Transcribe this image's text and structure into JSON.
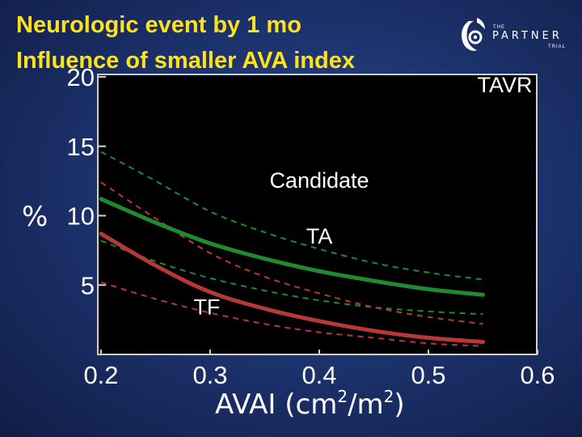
{
  "title_line1": "Neurologic event by 1 mo",
  "title_line2": "Influence of smaller AVA index",
  "logo": {
    "the": "THE",
    "name": "PARTNER",
    "trial": "TRIAL"
  },
  "colors": {
    "title": "#ffe21a",
    "candidate": "#1e8c2e",
    "tf": "#b83838",
    "plot_bg": "#000000",
    "axis": "#cfcfcf"
  },
  "chart_data": {
    "type": "line",
    "title": "",
    "xlabel_main": "AVAI (cm",
    "xlabel_sup1": "2",
    "xlabel_mid": "/m",
    "xlabel_sup2": "2",
    "xlabel_end": ")",
    "ylabel": "%",
    "xlim": [
      0.2,
      0.6
    ],
    "ylim": [
      0,
      20
    ],
    "xticks": [
      0.2,
      0.3,
      0.4,
      0.5,
      0.6
    ],
    "xtick_labels": [
      "0.2",
      "0.3",
      "0.4",
      "0.5",
      "0.6"
    ],
    "yticks": [
      5,
      10,
      15,
      20
    ],
    "ytick_labels": [
      "5",
      "10",
      "15",
      "20"
    ],
    "grid": false,
    "annotations": [
      {
        "text": "TAVR",
        "x": 0.57,
        "y": 18.9
      },
      {
        "text": "Candidate",
        "x": 0.4,
        "y": 12.0
      },
      {
        "text": "TA",
        "x": 0.4,
        "y": 8.0
      },
      {
        "text": "TF",
        "x": 0.297,
        "y": 2.9
      }
    ],
    "series": [
      {
        "id": "candidate",
        "style": "solid",
        "color": "#1e8c2e",
        "x": [
          0.2,
          0.25,
          0.3,
          0.35,
          0.4,
          0.45,
          0.5,
          0.55
        ],
        "y": [
          11.2,
          9.5,
          8.0,
          6.9,
          6.0,
          5.3,
          4.7,
          4.3
        ]
      },
      {
        "id": "candidate-upper",
        "style": "dashed",
        "color": "#1e8c2e",
        "x": [
          0.2,
          0.25,
          0.3,
          0.35,
          0.4,
          0.45,
          0.5,
          0.55
        ],
        "y": [
          14.6,
          12.5,
          10.3,
          8.8,
          7.6,
          6.6,
          5.9,
          5.4
        ]
      },
      {
        "id": "candidate-lower",
        "style": "dashed",
        "color": "#1e8c2e",
        "x": [
          0.2,
          0.25,
          0.3,
          0.35,
          0.4,
          0.45,
          0.5,
          0.55
        ],
        "y": [
          8.2,
          6.7,
          5.5,
          4.6,
          3.9,
          3.4,
          3.1,
          2.9
        ]
      },
      {
        "id": "tf",
        "style": "solid",
        "color": "#b83838",
        "x": [
          0.2,
          0.25,
          0.3,
          0.35,
          0.4,
          0.45,
          0.5,
          0.55
        ],
        "y": [
          8.7,
          6.4,
          4.5,
          3.3,
          2.4,
          1.7,
          1.2,
          0.9
        ]
      },
      {
        "id": "tf-upper",
        "style": "dashed",
        "color": "#b83838",
        "x": [
          0.2,
          0.25,
          0.3,
          0.35,
          0.4,
          0.45,
          0.5,
          0.55
        ],
        "y": [
          12.4,
          9.8,
          7.3,
          5.6,
          4.4,
          3.4,
          2.7,
          2.2
        ]
      },
      {
        "id": "tf-lower",
        "style": "dashed",
        "color": "#b83838",
        "x": [
          0.2,
          0.25,
          0.3,
          0.35,
          0.4,
          0.45,
          0.5,
          0.55
        ],
        "y": [
          5.2,
          4.0,
          3.0,
          2.2,
          1.6,
          1.2,
          0.8,
          0.6
        ]
      }
    ]
  }
}
